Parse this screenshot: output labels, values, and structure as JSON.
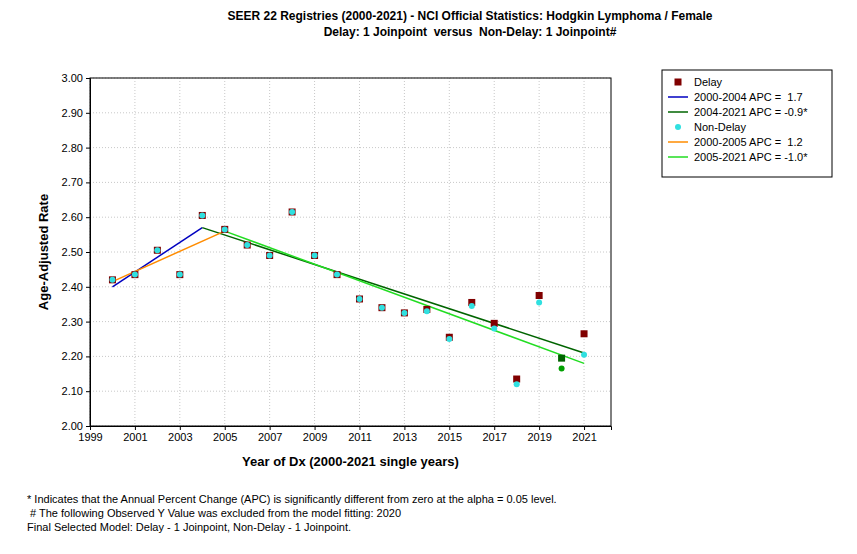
{
  "chart_data": {
    "type": "scatter",
    "title": "SEER 22 Registries (2000-2021) - NCI Official Statistics: Hodgkin Lymphoma / Female",
    "subtitle": "Delay: 1 Joinpoint  versus  Non-Delay: 1 Joinpoint#",
    "x_label": "Year of Dx (2000-2021 single years)",
    "y_label": "Age-Adjusted Rate",
    "annotations": [
      "* Indicates that the Annual Percent Change (APC) is significantly different from zero at the alpha = 0.05 level.",
      " # The following Observed Y Value was excluded from the model fitting: 2020",
      "Final Selected Model: Delay - 1 Joinpoint, Non-Delay - 1 Joinpoint."
    ],
    "xlim": [
      1999,
      2022.2
    ],
    "xticks": [
      1999,
      2001,
      2003,
      2005,
      2007,
      2009,
      2011,
      2013,
      2015,
      2017,
      2019,
      2021
    ],
    "ylim": [
      2.0,
      3.0
    ],
    "yticks": [
      {
        "value": 2.0,
        "label": "2.00"
      },
      {
        "value": 2.1,
        "label": "2.10"
      },
      {
        "value": 2.2,
        "label": "2.20"
      },
      {
        "value": 2.3,
        "label": "2.30"
      },
      {
        "value": 2.4,
        "label": "2.40"
      },
      {
        "value": 2.5,
        "label": "2.50"
      },
      {
        "value": 2.6,
        "label": "2.60"
      },
      {
        "value": 2.7,
        "label": "2.70"
      },
      {
        "value": 2.8,
        "label": "2.80"
      },
      {
        "value": 2.9,
        "label": "2.90"
      },
      {
        "value": 3.0,
        "label": "3.00"
      }
    ],
    "grid": true,
    "legend": "right",
    "series": [
      {
        "name": "Delay",
        "type": "scatter",
        "marker": "square",
        "color": "#800000",
        "x": [
          2000,
          2001,
          2002,
          2003,
          2004,
          2005,
          2006,
          2007,
          2008,
          2009,
          2010,
          2011,
          2012,
          2013,
          2014,
          2015,
          2016,
          2017,
          2018,
          2019,
          2020,
          2021
        ],
        "values": [
          2.42,
          2.435,
          2.505,
          2.435,
          2.605,
          2.565,
          2.52,
          2.49,
          2.615,
          2.49,
          2.435,
          2.365,
          2.34,
          2.325,
          2.335,
          2.255,
          2.355,
          2.295,
          2.135,
          2.375,
          2.195,
          2.265
        ],
        "colors": [
          "#800000",
          "#800000",
          "#800000",
          "#800000",
          "#800000",
          "#800000",
          "#800000",
          "#800000",
          "#800000",
          "#800000",
          "#800000",
          "#800000",
          "#800000",
          "#800000",
          "#800000",
          "#800000",
          "#800000",
          "#800000",
          "#800000",
          "#800000",
          "#006400",
          "#800000"
        ]
      },
      {
        "name": "2000-2004 APC =  1.7",
        "type": "line",
        "line_style": "solid",
        "color": "#0000c0",
        "x": [
          2000,
          2004
        ],
        "values": [
          2.4,
          2.57
        ]
      },
      {
        "name": "2004-2021 APC = -0.9*",
        "type": "line",
        "line_style": "solid",
        "color": "#006400",
        "x": [
          2004,
          2021
        ],
        "values": [
          2.57,
          2.21
        ]
      },
      {
        "name": "Non-Delay",
        "type": "scatter",
        "marker": "circle",
        "color": "#30e0e0",
        "x": [
          2000,
          2001,
          2002,
          2003,
          2004,
          2005,
          2006,
          2007,
          2008,
          2009,
          2010,
          2011,
          2012,
          2013,
          2014,
          2015,
          2016,
          2017,
          2018,
          2019,
          2020,
          2021
        ],
        "values": [
          2.42,
          2.435,
          2.505,
          2.435,
          2.605,
          2.565,
          2.52,
          2.49,
          2.615,
          2.49,
          2.435,
          2.365,
          2.34,
          2.325,
          2.33,
          2.25,
          2.345,
          2.28,
          2.12,
          2.355,
          2.165,
          2.205
        ],
        "colors": [
          "#30e0e0",
          "#30e0e0",
          "#30e0e0",
          "#30e0e0",
          "#30e0e0",
          "#30e0e0",
          "#30e0e0",
          "#30e0e0",
          "#30e0e0",
          "#30e0e0",
          "#30e0e0",
          "#30e0e0",
          "#30e0e0",
          "#30e0e0",
          "#30e0e0",
          "#30e0e0",
          "#30e0e0",
          "#30e0e0",
          "#30e0e0",
          "#30e0e0",
          "#00a000",
          "#30e0e0"
        ]
      },
      {
        "name": "2000-2005 APC =  1.2",
        "type": "line",
        "line_style": "solid",
        "color": "#ff8c00",
        "x": [
          2000,
          2005
        ],
        "values": [
          2.415,
          2.56
        ]
      },
      {
        "name": "2005-2021 APC = -1.0*",
        "type": "line",
        "line_style": "solid",
        "color": "#22dd22",
        "x": [
          2005,
          2021
        ],
        "values": [
          2.56,
          2.18
        ]
      }
    ]
  }
}
